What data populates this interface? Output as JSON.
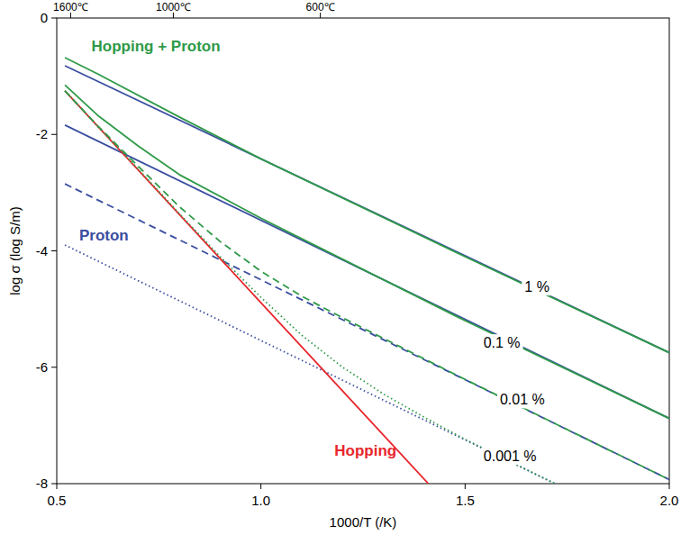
{
  "chart_data": {
    "type": "line",
    "x_label": "1000/T (/K)",
    "y_label": "log σ (log S/m)",
    "xlim": [
      0.5,
      2.0
    ],
    "ylim": [
      -8,
      0
    ],
    "xticks": [
      0.5,
      {
        "value": 1,
        "label": "1.0"
      },
      1.5,
      {
        "value": 2,
        "label": "2.0"
      }
    ],
    "yticks": [
      -8,
      -6,
      -4,
      -2,
      0
    ],
    "x2ticks": [
      {
        "value": 0.534,
        "label": "1600℃"
      },
      {
        "value": 0.7855,
        "label": "1000℃"
      },
      {
        "value": 1.1455,
        "label": "600℃"
      }
    ],
    "grid": false,
    "series": [
      {
        "color": "#3a4ea0",
        "line_style": "solid",
        "x": [
          0.52,
          2.0
        ],
        "values": [
          -0.82,
          -5.75
        ]
      },
      {
        "color": "#3a4ea0",
        "line_style": "solid",
        "x": [
          0.52,
          2.0
        ],
        "values": [
          -1.84,
          -6.88
        ]
      },
      {
        "color": "#3a4ea0",
        "line_style": "dashed",
        "x": [
          0.52,
          2.0
        ],
        "values": [
          -2.85,
          -7.93
        ]
      },
      {
        "color": "#3a4ea0",
        "line_style": "dotted",
        "x": [
          0.52,
          1.72
        ],
        "values": [
          -3.9,
          -8.0
        ]
      },
      {
        "color": "#e8262c",
        "line_style": "solid",
        "x": [
          0.52,
          1.0,
          1.41
        ],
        "values": [
          -1.25,
          -4.89,
          -8.0
        ]
      },
      {
        "color": "#2e9a48",
        "line_style": "solid",
        "x": [
          0.52,
          0.6,
          0.8,
          1.0,
          1.5,
          2.0
        ],
        "values": [
          -0.68,
          -0.96,
          -1.7,
          -2.42,
          -4.1,
          -5.75
        ]
      },
      {
        "color": "#2e9a48",
        "line_style": "solid",
        "x": [
          0.52,
          0.6,
          0.7,
          0.8,
          1.0,
          1.5,
          2.0
        ],
        "values": [
          -1.15,
          -1.67,
          -2.2,
          -2.69,
          -3.44,
          -5.2,
          -6.88
        ]
      },
      {
        "color": "#2e9a48",
        "line_style": "dashed",
        "x": [
          0.52,
          0.6,
          0.7,
          0.8,
          0.9,
          1.0,
          1.1,
          1.2,
          1.5,
          2.0
        ],
        "values": [
          -1.25,
          -1.85,
          -2.55,
          -3.24,
          -3.84,
          -4.35,
          -4.78,
          -5.15,
          -6.21,
          -7.93
        ]
      },
      {
        "color": "#2e9a48",
        "line_style": "dotted",
        "x": [
          0.52,
          0.6,
          0.7,
          0.8,
          0.9,
          1.0,
          1.1,
          1.2,
          1.3,
          1.4,
          1.5,
          1.72
        ],
        "values": [
          -1.25,
          -1.86,
          -2.6,
          -3.36,
          -4.1,
          -4.8,
          -5.45,
          -6.0,
          -6.46,
          -6.86,
          -7.24,
          -8.0
        ]
      }
    ],
    "annotations": [
      {
        "text": "Hopping + Proton",
        "x": 0.585,
        "y": -0.5,
        "color": "#2e9a48"
      },
      {
        "text": "Proton",
        "x": 0.555,
        "y": -3.75,
        "color": "#3a4ea0"
      },
      {
        "text": "Hopping",
        "x": 1.18,
        "y": -7.45,
        "color": "#e8262c"
      },
      {
        "text": "1 %",
        "x": 1.676,
        "y": -4.64
      },
      {
        "text": "0.1 %",
        "x": 1.59,
        "y": -5.6
      },
      {
        "text": "0.01 %",
        "x": 1.64,
        "y": -6.58
      },
      {
        "text": "0.001 %",
        "x": 1.61,
        "y": -7.55
      }
    ]
  }
}
